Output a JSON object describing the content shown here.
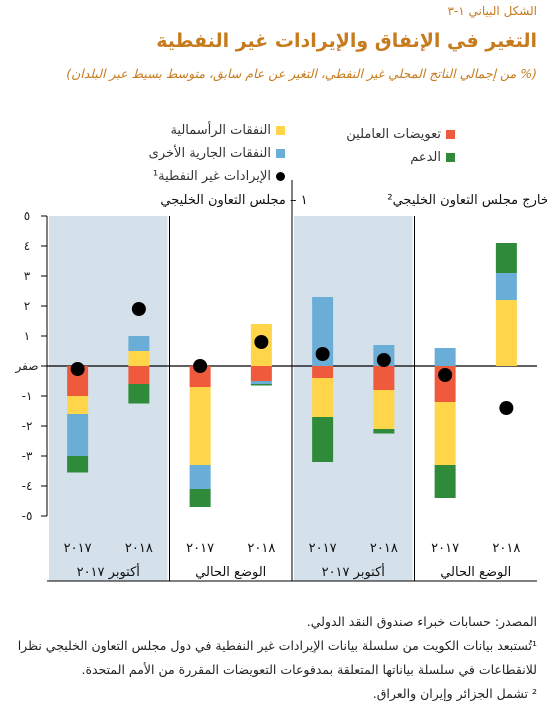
{
  "figure": {
    "number": "الشكل البياني ١-٣",
    "title": "التغير في الإنفاق والإيرادات غير النفطية",
    "subtitle": "(% من إجمالي الناتج المحلي غير النفطي، التغير عن عام سابق، متوسط بسيط عبر البلدان)"
  },
  "legend": {
    "capital": "النفقات الرأسمالية",
    "current": "النفقات الجارية الأخرى",
    "revenue": "الإيرادات غير النفطية¹",
    "compensation": "تعويضات العاملين",
    "subsidies": "الدعم"
  },
  "colors": {
    "compensation": "#f05a3c",
    "capital": "#ffd54a",
    "current": "#6aaed8",
    "subsidies": "#2f8a3a",
    "shade": "#d4e0ea",
    "dot": "#000000"
  },
  "chart_data": {
    "type": "bar",
    "stacked": true,
    "ylim": [
      -5,
      5
    ],
    "y_ticks": [
      "٥-",
      "٤-",
      "٣-",
      "٢-",
      "١-",
      "صفر",
      "١",
      "٢",
      "٣",
      "٤",
      "٥"
    ],
    "panels": [
      {
        "label": "١ – مجلس التعاون الخليجي",
        "groups": [
          {
            "label": "أكتوبر ٢٠١٧",
            "shaded": true
          },
          {
            "label": "الوضع الحالي",
            "shaded": false
          }
        ],
        "categories": [
          {
            "year": "٢٠١٧",
            "group": 0,
            "compensation": -1.0,
            "capital": -0.6,
            "current": -1.4,
            "subsidies": -0.55,
            "revenue": -0.1
          },
          {
            "year": "٢٠١٨",
            "group": 0,
            "compensation": -0.6,
            "capital": 0.5,
            "current": 0.5,
            "subsidies": -0.65,
            "revenue": 1.9
          },
          {
            "year": "٢٠١٧",
            "group": 1,
            "compensation": -0.7,
            "capital": -2.6,
            "current": -0.8,
            "subsidies": -0.6,
            "revenue": 0.0
          },
          {
            "year": "٢٠١٨",
            "group": 1,
            "compensation": -0.5,
            "capital": 1.4,
            "current": -0.1,
            "subsidies": -0.05,
            "revenue": 0.8
          }
        ]
      },
      {
        "label": "٢ – خارج مجلس التعاون الخليجي²",
        "groups": [
          {
            "label": "أكتوبر ٢٠١٧",
            "shaded": true
          },
          {
            "label": "الوضع الحالي",
            "shaded": false
          }
        ],
        "categories": [
          {
            "year": "٢٠١٧",
            "group": 0,
            "compensation": -0.4,
            "capital": -1.3,
            "current": 2.3,
            "subsidies": -1.5,
            "revenue": 0.4
          },
          {
            "year": "٢٠١٨",
            "group": 0,
            "compensation": -0.8,
            "capital": -1.3,
            "current": 0.7,
            "subsidies": -0.15,
            "revenue": 0.2
          },
          {
            "year": "٢٠١٧",
            "group": 1,
            "compensation": -1.2,
            "capital": -2.1,
            "current": 0.6,
            "subsidies": -1.1,
            "revenue": -0.3
          },
          {
            "year": "٢٠١٨",
            "group": 1,
            "compensation": 0.0,
            "capital": 2.2,
            "current": 0.9,
            "subsidies": 1.0,
            "revenue": -1.4
          }
        ]
      }
    ]
  },
  "notes": {
    "source": "المصدر: حسابات خبراء صندوق النقد الدولي.",
    "note1_line1": "¹تُستبعد بيانات الكويت من سلسلة بيانات الإيرادات غير النفطية في دول مجلس التعاون الخليجي نظرا",
    "note1_line2": "للانقطاعات في سلسلة بياناتها المتعلقة بمدفوعات التعويضات المقررة من الأمم المتحدة.",
    "note2": "² تشمل الجزائر وإيران والعراق."
  }
}
